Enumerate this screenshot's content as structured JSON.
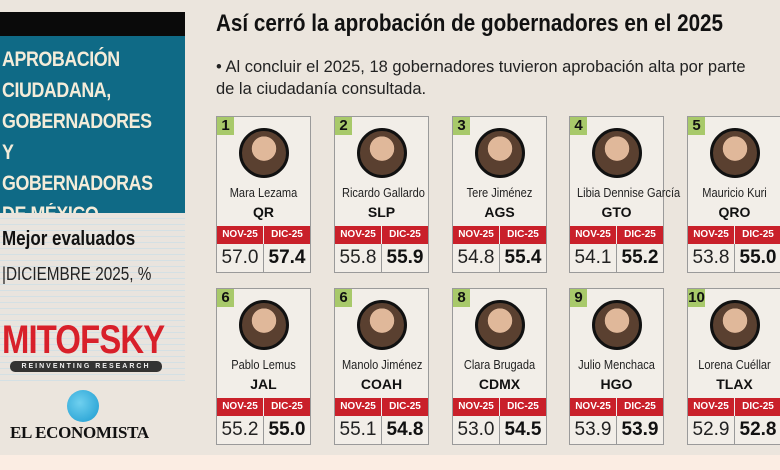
{
  "sidebar": {
    "heading_lines": [
      "APROBACIÓN",
      "CIUDADANA,",
      "GOBERNADORES Y",
      "GOBERNADORAS",
      "DE MÉXICO"
    ],
    "subtitle": "Mejor evaluados",
    "date": "|DICIEMBRE 2025, %",
    "source_logo": "MITOFSKY",
    "source_tagline": "REINVENTING RESEARCH",
    "publisher": "EL ECONOMISTA"
  },
  "header": {
    "title": "Así cerró la aprobación de  gobernadores en el 2025",
    "bullet": "• Al concluir el 2025, 18 gobernadores tuvieron aprobación alta por parte de la ciudadanía consultada."
  },
  "columns": {
    "nov": "NOV-25",
    "dic": "DIC-25"
  },
  "governors": [
    {
      "rank": "1",
      "name": "Mara Lezama",
      "state": "QR",
      "nov": "57.0",
      "dic": "57.4"
    },
    {
      "rank": "2",
      "name": "Ricardo Gallardo",
      "state": "SLP",
      "nov": "55.8",
      "dic": "55.9"
    },
    {
      "rank": "3",
      "name": "Tere Jiménez",
      "state": "AGS",
      "nov": "54.8",
      "dic": "55.4"
    },
    {
      "rank": "4",
      "name": "Libia Dennise García",
      "state": "GTO",
      "nov": "54.1",
      "dic": "55.2"
    },
    {
      "rank": "5",
      "name": "Mauricio Kuri",
      "state": "QRO",
      "nov": "53.8",
      "dic": "55.0"
    },
    {
      "rank": "6",
      "name": "Pablo Lemus",
      "state": "JAL",
      "nov": "55.2",
      "dic": "55.0"
    },
    {
      "rank": "6",
      "name": "Manolo Jiménez",
      "state": "COAH",
      "nov": "55.1",
      "dic": "54.8"
    },
    {
      "rank": "8",
      "name": "Clara Brugada",
      "state": "CDMX",
      "nov": "53.0",
      "dic": "54.5"
    },
    {
      "rank": "9",
      "name": "Julio Menchaca",
      "state": "HGO",
      "nov": "53.9",
      "dic": "53.9"
    },
    {
      "rank": "10",
      "name": "Lorena Cuéllar",
      "state": "TLAX",
      "nov": "52.9",
      "dic": "52.8"
    }
  ]
}
